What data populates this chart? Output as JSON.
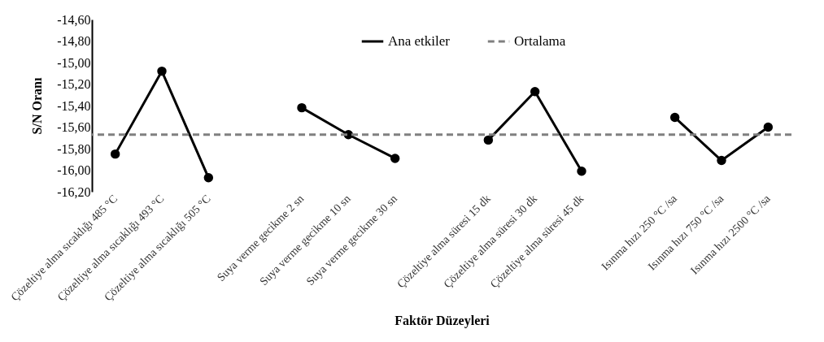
{
  "chart_data": {
    "type": "line",
    "categories": [
      "Çözeltiye alma sıcaklığı 485 °C",
      "Çözeltiye alma sıcaklığı 493 °C",
      "Çözeltiye alma sıcaklığı 505 °C",
      null,
      "Suya verme gecikme 2 sn",
      "Suya verme gecikme 10 sn",
      "Suya verme gecikme 30 sn",
      null,
      "Çözeltiye alma süresi 15 dk",
      "Çözeltiye alma süresi  30 dk",
      "Çözeltiye alma süresi  45 dk",
      null,
      "Isınma hızı 250 °C /sa",
      "Isınma hızı 750 °C /sa",
      "Isınma hızı 2500 °C /sa"
    ],
    "series": [
      {
        "name": "Ana etkiler",
        "color": "#000000",
        "values": [
          -15.85,
          -15.08,
          -16.07,
          null,
          -15.42,
          -15.67,
          -15.89,
          null,
          -15.72,
          -15.27,
          -16.01,
          null,
          -15.51,
          -15.91,
          -15.6
        ]
      }
    ],
    "ref_lines": [
      {
        "axis": "y",
        "value": -15.67,
        "label": "Ortalama",
        "color": "#808080",
        "line_style": "dashed"
      }
    ],
    "xlabel": "Faktör Düzeyleri",
    "ylabel": "S/N Oranı",
    "ylim": [
      -16.2,
      -14.6
    ],
    "yticks": [
      {
        "value": -14.6,
        "label": "-14,60"
      },
      {
        "value": -14.8,
        "label": "-14,80"
      },
      {
        "value": -15.0,
        "label": "-15,00"
      },
      {
        "value": -15.2,
        "label": "-15,20"
      },
      {
        "value": -15.4,
        "label": "-15,40"
      },
      {
        "value": -15.6,
        "label": "-15,60"
      },
      {
        "value": -15.8,
        "label": "-15,80"
      },
      {
        "value": -16.0,
        "label": "-16,00"
      },
      {
        "value": -16.2,
        "label": "-16,20"
      }
    ],
    "marker": "circle",
    "line_style": "solid",
    "legend": "top",
    "grid": false
  }
}
